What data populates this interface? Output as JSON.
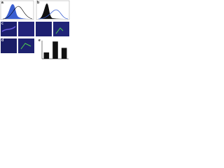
{
  "figure": {
    "panels": [
      {
        "label": "a"
      },
      {
        "label": "b"
      },
      {
        "label": "c"
      },
      {
        "label": "d"
      },
      {
        "label": "e"
      }
    ],
    "bar_chart": {
      "type": "bar",
      "categories": [
        null,
        null,
        null
      ],
      "values": [
        35,
        95,
        60
      ],
      "color": "#111111",
      "ylim": [
        0,
        100
      ]
    }
  }
}
